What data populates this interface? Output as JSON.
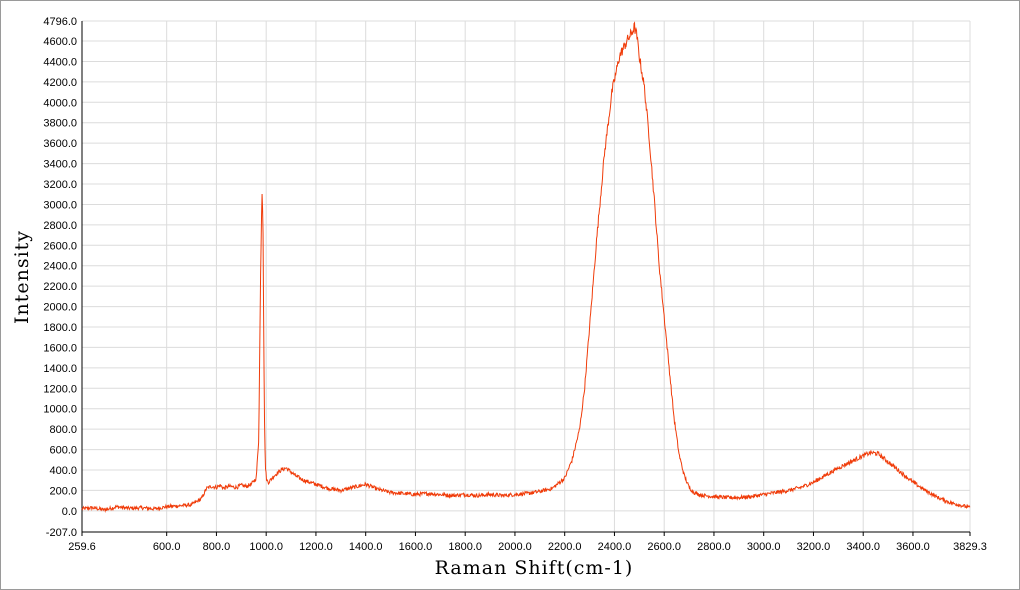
{
  "chart_data": {
    "type": "line",
    "title": "",
    "xlabel": "Raman Shift(cm-1)",
    "ylabel": "Intensity",
    "xlim": [
      259.6,
      3829.3
    ],
    "ylim": [
      -207.0,
      4796.0
    ],
    "grid": true,
    "colors": {
      "series": "#f03c0a",
      "grid": "#dcdcdc",
      "axis": "#000000"
    },
    "x_ticks": [
      259.6,
      600.0,
      800.0,
      1000.0,
      1200.0,
      1400.0,
      1600.0,
      1800.0,
      2000.0,
      2200.0,
      2400.0,
      2600.0,
      2800.0,
      3000.0,
      3200.0,
      3400.0,
      3600.0,
      3829.3
    ],
    "x_tick_labels": [
      "259.6",
      "600.0",
      "800.0",
      "1000.0",
      "1200.0",
      "1400.0",
      "1600.0",
      "1800.0",
      "2000.0",
      "2200.0",
      "2400.0",
      "2600.0",
      "2800.0",
      "3000.0",
      "3200.0",
      "3400.0",
      "3600.0",
      "3829.3"
    ],
    "y_ticks": [
      -207.0,
      0.0,
      200.0,
      400.0,
      600.0,
      800.0,
      1000.0,
      1200.0,
      1400.0,
      1600.0,
      1800.0,
      2000.0,
      2200.0,
      2400.0,
      2600.0,
      2800.0,
      3000.0,
      3200.0,
      3400.0,
      3600.0,
      3800.0,
      4000.0,
      4200.0,
      4400.0,
      4600.0,
      4796.0
    ],
    "y_tick_labels": [
      "-207.0",
      "0.0",
      "200.0",
      "400.0",
      "600.0",
      "800.0",
      "1000.0",
      "1200.0",
      "1400.0",
      "1600.0",
      "1800.0",
      "2000.0",
      "2200.0",
      "2400.0",
      "2600.0",
      "2800.0",
      "3000.0",
      "3200.0",
      "3400.0",
      "3600.0",
      "3800.0",
      "4000.0",
      "4200.0",
      "4400.0",
      "4600.0",
      "4796.0"
    ],
    "series": [
      {
        "x": [
          259.6,
          300,
          350,
          400,
          450,
          500,
          550,
          600,
          650,
          700,
          740,
          760,
          780,
          800,
          815,
          830,
          850,
          880,
          900,
          920,
          940,
          960,
          970,
          978,
          983,
          987,
          990,
          993,
          997,
          1002,
          1010,
          1030,
          1060,
          1080,
          1100,
          1120,
          1150,
          1200,
          1250,
          1300,
          1350,
          1400,
          1450,
          1500,
          1550,
          1600,
          1650,
          1700,
          1750,
          1800,
          1850,
          1900,
          1950,
          2000,
          2050,
          2100,
          2150,
          2200,
          2230,
          2260,
          2280,
          2300,
          2330,
          2360,
          2390,
          2420,
          2450,
          2470,
          2480,
          2490,
          2500,
          2520,
          2540,
          2560,
          2580,
          2600,
          2620,
          2640,
          2660,
          2680,
          2700,
          2720,
          2740,
          2760,
          2800,
          2850,
          2900,
          2950,
          3000,
          3050,
          3100,
          3150,
          3200,
          3250,
          3300,
          3350,
          3400,
          3430,
          3460,
          3500,
          3550,
          3600,
          3650,
          3700,
          3750,
          3800,
          3829.3
        ],
        "y": [
          20,
          30,
          10,
          40,
          25,
          30,
          20,
          40,
          50,
          60,
          120,
          220,
          240,
          230,
          250,
          220,
          240,
          230,
          250,
          240,
          260,
          320,
          700,
          2400,
          3150,
          2900,
          1800,
          900,
          420,
          300,
          280,
          340,
          400,
          420,
          380,
          340,
          300,
          260,
          220,
          200,
          230,
          260,
          210,
          180,
          170,
          160,
          170,
          160,
          150,
          160,
          150,
          160,
          150,
          160,
          170,
          190,
          220,
          320,
          500,
          800,
          1200,
          1800,
          2700,
          3500,
          4100,
          4450,
          4600,
          4680,
          4740,
          4650,
          4450,
          4150,
          3650,
          3050,
          2400,
          1900,
          1400,
          900,
          550,
          350,
          230,
          180,
          160,
          150,
          140,
          130,
          130,
          140,
          160,
          180,
          200,
          230,
          280,
          350,
          420,
          480,
          540,
          570,
          560,
          480,
          380,
          280,
          200,
          130,
          80,
          50,
          30
        ]
      }
    ],
    "annotations": []
  }
}
